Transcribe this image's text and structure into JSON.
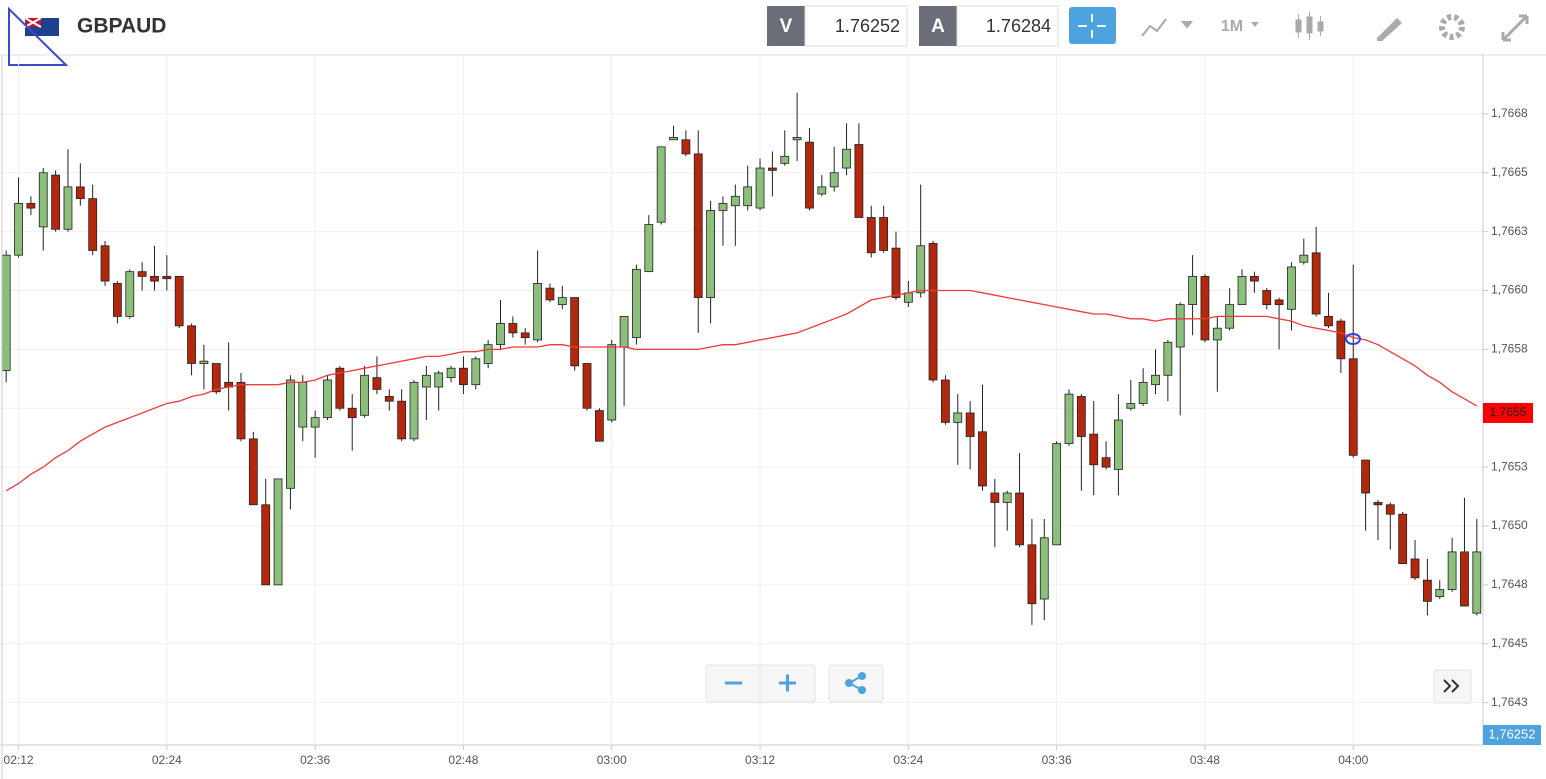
{
  "header": {
    "symbol": "GBPAUD",
    "bid_tag": "V",
    "bid": "1.76252",
    "ask_tag": "A",
    "ask": "1.76284",
    "timeframe": "1M"
  },
  "chart_data": {
    "type": "candlestick",
    "categories": [
      null,
      "02:12",
      null,
      null,
      null,
      null,
      null,
      null,
      null,
      null,
      null,
      null,
      null,
      "02:24",
      null,
      null,
      null,
      null,
      null,
      null,
      null,
      null,
      null,
      null,
      null,
      "02:36",
      null,
      null,
      null,
      null,
      null,
      null,
      null,
      null,
      null,
      null,
      null,
      "02:48",
      null,
      null,
      null,
      null,
      null,
      null,
      null,
      null,
      null,
      null,
      null,
      "03:00",
      null,
      null,
      null,
      null,
      null,
      null,
      null,
      null,
      null,
      null,
      null,
      "03:12",
      null,
      null,
      null,
      null,
      null,
      null,
      null,
      null,
      null,
      null,
      null,
      "03:24",
      null,
      null,
      null,
      null,
      null,
      null,
      null,
      null,
      null,
      null,
      null,
      "03:36",
      null,
      null,
      null,
      null,
      null,
      null,
      null,
      null,
      null,
      null,
      null,
      "03:48",
      null,
      null,
      null,
      null,
      null,
      null,
      null,
      null,
      null,
      null,
      null,
      "04:00",
      null,
      null,
      null,
      null,
      null,
      null,
      null,
      null,
      null,
      null
    ],
    "open": [
      1.76566,
      1.76615,
      1.76637,
      1.76627,
      1.76649,
      1.76626,
      1.76644,
      1.76639,
      1.76619,
      1.76603,
      1.76589,
      1.76608,
      1.76606,
      1.76606,
      1.76606,
      1.76585,
      1.76569,
      1.76569,
      1.76561,
      1.76561,
      1.76537,
      1.76509,
      1.76475,
      1.76516,
      1.76542,
      1.76542,
      1.76546,
      1.76567,
      1.7655,
      1.76547,
      1.76563,
      1.76555,
      1.76553,
      1.76537,
      1.76559,
      1.76559,
      1.76563,
      1.76567,
      1.7656,
      1.76569,
      1.76577,
      1.76586,
      1.76582,
      1.76579,
      1.76601,
      1.76594,
      1.76597,
      1.76569,
      1.76549,
      1.76545,
      1.76576,
      1.7658,
      1.76608,
      1.76629,
      1.76664,
      1.76664,
      1.76658,
      1.76597,
      1.76634,
      1.76636,
      1.76636,
      1.76635,
      1.76652,
      1.76654,
      1.76664,
      1.76663,
      1.76641,
      1.76644,
      1.76652,
      1.76662,
      1.76631,
      1.76631,
      1.76618,
      1.76595,
      1.76599,
      1.7662,
      1.76562,
      1.76544,
      1.76548,
      1.7654,
      1.76514,
      1.7651,
      1.76514,
      1.76492,
      1.76469,
      1.76492,
      1.76535,
      1.76555,
      1.76539,
      1.76529,
      1.76524,
      1.7655,
      1.76552,
      1.7656,
      1.76564,
      1.76576,
      1.76594,
      1.76606,
      1.76579,
      1.76584,
      1.76594,
      1.76606,
      1.766,
      1.76596,
      1.76592,
      1.76612,
      1.76616,
      1.76589,
      1.76587,
      1.76571,
      1.76528,
      1.7651,
      1.76509,
      1.76505,
      1.76486,
      1.76477,
      1.7647,
      1.76473,
      1.76489,
      1.76463
    ],
    "high": [
      1.76617,
      1.76648,
      1.7664,
      1.76652,
      1.76651,
      1.7666,
      1.76654,
      1.76645,
      1.76621,
      1.76604,
      1.76609,
      1.76612,
      1.76619,
      1.76615,
      1.76606,
      1.76586,
      1.76577,
      1.76569,
      1.76578,
      1.76565,
      1.7654,
      1.7652,
      1.7652,
      1.76564,
      1.76564,
      1.76549,
      1.76564,
      1.76568,
      1.76556,
      1.76568,
      1.76572,
      1.76558,
      1.76558,
      1.76562,
      1.76568,
      1.76566,
      1.76568,
      1.76572,
      1.76572,
      1.76579,
      1.76596,
      1.76589,
      1.76584,
      1.76617,
      1.76603,
      1.76602,
      1.76597,
      1.76569,
      1.7655,
      1.76579,
      1.76589,
      1.76611,
      1.76632,
      1.76661,
      1.7667,
      1.76668,
      1.76668,
      1.76638,
      1.7664,
      1.76645,
      1.76653,
      1.76656,
      1.76659,
      1.76668,
      1.76684,
      1.76669,
      1.76649,
      1.76661,
      1.76671,
      1.76671,
      1.76636,
      1.76636,
      1.76625,
      1.76604,
      1.76645,
      1.76621,
      1.76564,
      1.76556,
      1.76553,
      1.7656,
      1.7652,
      1.76515,
      1.76531,
      1.76503,
      1.76503,
      1.76536,
      1.76558,
      1.76556,
      1.76553,
      1.76536,
      1.76556,
      1.76562,
      1.76567,
      1.76575,
      1.76579,
      1.76595,
      1.76615,
      1.76607,
      1.76589,
      1.76601,
      1.76609,
      1.76608,
      1.76601,
      1.76597,
      1.76612,
      1.76622,
      1.76627,
      1.76599,
      1.76588,
      1.76611,
      1.76528,
      1.76511,
      1.7651,
      1.76506,
      1.76494,
      1.76486,
      1.76477,
      1.76495,
      1.76512,
      1.76503
    ],
    "low": [
      1.76561,
      1.76614,
      1.76632,
      1.76617,
      1.76625,
      1.76625,
      1.76636,
      1.76615,
      1.76602,
      1.76586,
      1.76588,
      1.766,
      1.766,
      1.766,
      1.76584,
      1.76564,
      1.76558,
      1.76556,
      1.76549,
      1.76536,
      1.76509,
      1.76475,
      1.76475,
      1.76507,
      1.76536,
      1.76529,
      1.76545,
      1.76549,
      1.76532,
      1.76546,
      1.76556,
      1.76549,
      1.76536,
      1.76536,
      1.76545,
      1.76549,
      1.76561,
      1.76556,
      1.76558,
      1.76567,
      1.76575,
      1.7658,
      1.76577,
      1.76578,
      1.76595,
      1.76592,
      1.76566,
      1.76549,
      1.76536,
      1.76544,
      1.76551,
      1.76577,
      1.76608,
      1.76628,
      1.76664,
      1.76657,
      1.76582,
      1.76586,
      1.76619,
      1.76619,
      1.76634,
      1.76634,
      1.7664,
      1.76653,
      1.76655,
      1.76634,
      1.7664,
      1.76642,
      1.76649,
      1.76631,
      1.76614,
      1.76616,
      1.76596,
      1.76593,
      1.76597,
      1.76561,
      1.76543,
      1.76526,
      1.76524,
      1.76515,
      1.76491,
      1.76498,
      1.76491,
      1.76458,
      1.7646,
      1.76492,
      1.76534,
      1.76515,
      1.76513,
      1.76524,
      1.76513,
      1.76549,
      1.76551,
      1.76556,
      1.76553,
      1.76547,
      1.76581,
      1.76578,
      1.76557,
      1.76583,
      1.76594,
      1.76599,
      1.76592,
      1.76575,
      1.76583,
      1.76611,
      1.76589,
      1.76584,
      1.76565,
      1.76529,
      1.76498,
      1.76494,
      1.7649,
      1.76484,
      1.76477,
      1.76462,
      1.76469,
      1.76472,
      1.76466,
      1.76462
    ],
    "close": [
      1.76615,
      1.76637,
      1.76635,
      1.7665,
      1.76626,
      1.76644,
      1.76639,
      1.76617,
      1.76604,
      1.76589,
      1.76608,
      1.76606,
      1.76604,
      1.76605,
      1.76585,
      1.76569,
      1.7657,
      1.76557,
      1.76559,
      1.76537,
      1.76509,
      1.76475,
      1.7652,
      1.76562,
      1.76561,
      1.76546,
      1.76562,
      1.7655,
      1.76546,
      1.76564,
      1.76558,
      1.76553,
      1.76537,
      1.76561,
      1.76564,
      1.76565,
      1.76567,
      1.7656,
      1.76571,
      1.76577,
      1.76586,
      1.76582,
      1.7658,
      1.76603,
      1.76596,
      1.76597,
      1.76568,
      1.7655,
      1.76536,
      1.76577,
      1.76589,
      1.76609,
      1.76628,
      1.76661,
      1.76665,
      1.76658,
      1.76597,
      1.76634,
      1.76637,
      1.7664,
      1.76644,
      1.76652,
      1.76651,
      1.76657,
      1.76665,
      1.76635,
      1.76644,
      1.7665,
      1.7666,
      1.76631,
      1.76616,
      1.76617,
      1.76597,
      1.76599,
      1.76619,
      1.76562,
      1.76544,
      1.76548,
      1.76538,
      1.76517,
      1.7651,
      1.76514,
      1.76492,
      1.76467,
      1.76495,
      1.76535,
      1.76556,
      1.76538,
      1.76526,
      1.76525,
      1.76545,
      1.76552,
      1.76561,
      1.76564,
      1.76578,
      1.76594,
      1.76606,
      1.76579,
      1.76584,
      1.76594,
      1.76606,
      1.76604,
      1.76594,
      1.76594,
      1.7661,
      1.76615,
      1.7659,
      1.76585,
      1.76571,
      1.7653,
      1.76514,
      1.76509,
      1.76505,
      1.76484,
      1.76478,
      1.76468,
      1.76473,
      1.76489,
      1.76466,
      1.76489
    ],
    "up_color": "#8cbf7c",
    "down_color": "#b3280d",
    "overlay": {
      "color": "#f03a3a",
      "values": [
        1.76515,
        1.76518,
        1.76522,
        1.76525,
        1.76529,
        1.76532,
        1.76536,
        1.76539,
        1.76542,
        1.76544,
        1.76546,
        1.76548,
        1.7655,
        1.76552,
        1.76553,
        1.76555,
        1.76556,
        1.76558,
        1.76559,
        1.7656,
        1.7656,
        1.7656,
        1.7656,
        1.76561,
        1.76561,
        1.76562,
        1.76564,
        1.76565,
        1.76566,
        1.76567,
        1.76568,
        1.76569,
        1.7657,
        1.76571,
        1.76572,
        1.76572,
        1.76573,
        1.76574,
        1.76574,
        1.76575,
        1.76575,
        1.76576,
        1.76576,
        1.76576,
        1.76577,
        1.76577,
        1.76576,
        1.76576,
        1.76576,
        1.76576,
        1.76576,
        1.76575,
        1.76575,
        1.76575,
        1.76575,
        1.76575,
        1.76575,
        1.76576,
        1.76577,
        1.76577,
        1.76578,
        1.76579,
        1.7658,
        1.76581,
        1.76582,
        1.76584,
        1.76586,
        1.76588,
        1.7659,
        1.76593,
        1.76596,
        1.76597,
        1.76598,
        1.76599,
        1.766,
        1.766,
        1.766,
        1.766,
        1.766,
        1.76599,
        1.76598,
        1.76597,
        1.76596,
        1.76595,
        1.76594,
        1.76593,
        1.76592,
        1.76591,
        1.7659,
        1.7659,
        1.76589,
        1.76588,
        1.76588,
        1.76587,
        1.76588,
        1.76588,
        1.76588,
        1.76588,
        1.76589,
        1.76589,
        1.76589,
        1.76589,
        1.76589,
        1.76588,
        1.76587,
        1.76585,
        1.76584,
        1.76583,
        1.76582,
        1.7658,
        1.76579,
        1.76577,
        1.76574,
        1.76571,
        1.76568,
        1.76564,
        1.76561,
        1.76557,
        1.76554,
        1.76551
      ],
      "last_label": {
        "value": 1.76548,
        "label": "1,7655"
      }
    },
    "ylim": [
      1.76407,
      1.767
    ],
    "yticks": [
      {
        "value": 1.76425,
        "label": "1,7643"
      },
      {
        "value": 1.7645,
        "label": "1,7645"
      },
      {
        "value": 1.76475,
        "label": "1,7648"
      },
      {
        "value": 1.765,
        "label": "1,7650"
      },
      {
        "value": 1.76525,
        "label": "1,7653"
      },
      {
        "value": 1.7655,
        "label": "1,7655"
      },
      {
        "value": 1.76575,
        "label": "1,7658"
      },
      {
        "value": 1.766,
        "label": "1,7660"
      },
      {
        "value": 1.76625,
        "label": "1,7663"
      },
      {
        "value": 1.7665,
        "label": "1,7665"
      },
      {
        "value": 1.76675,
        "label": "1,7668"
      }
    ],
    "grid": true,
    "bid_label": "1,76252"
  }
}
